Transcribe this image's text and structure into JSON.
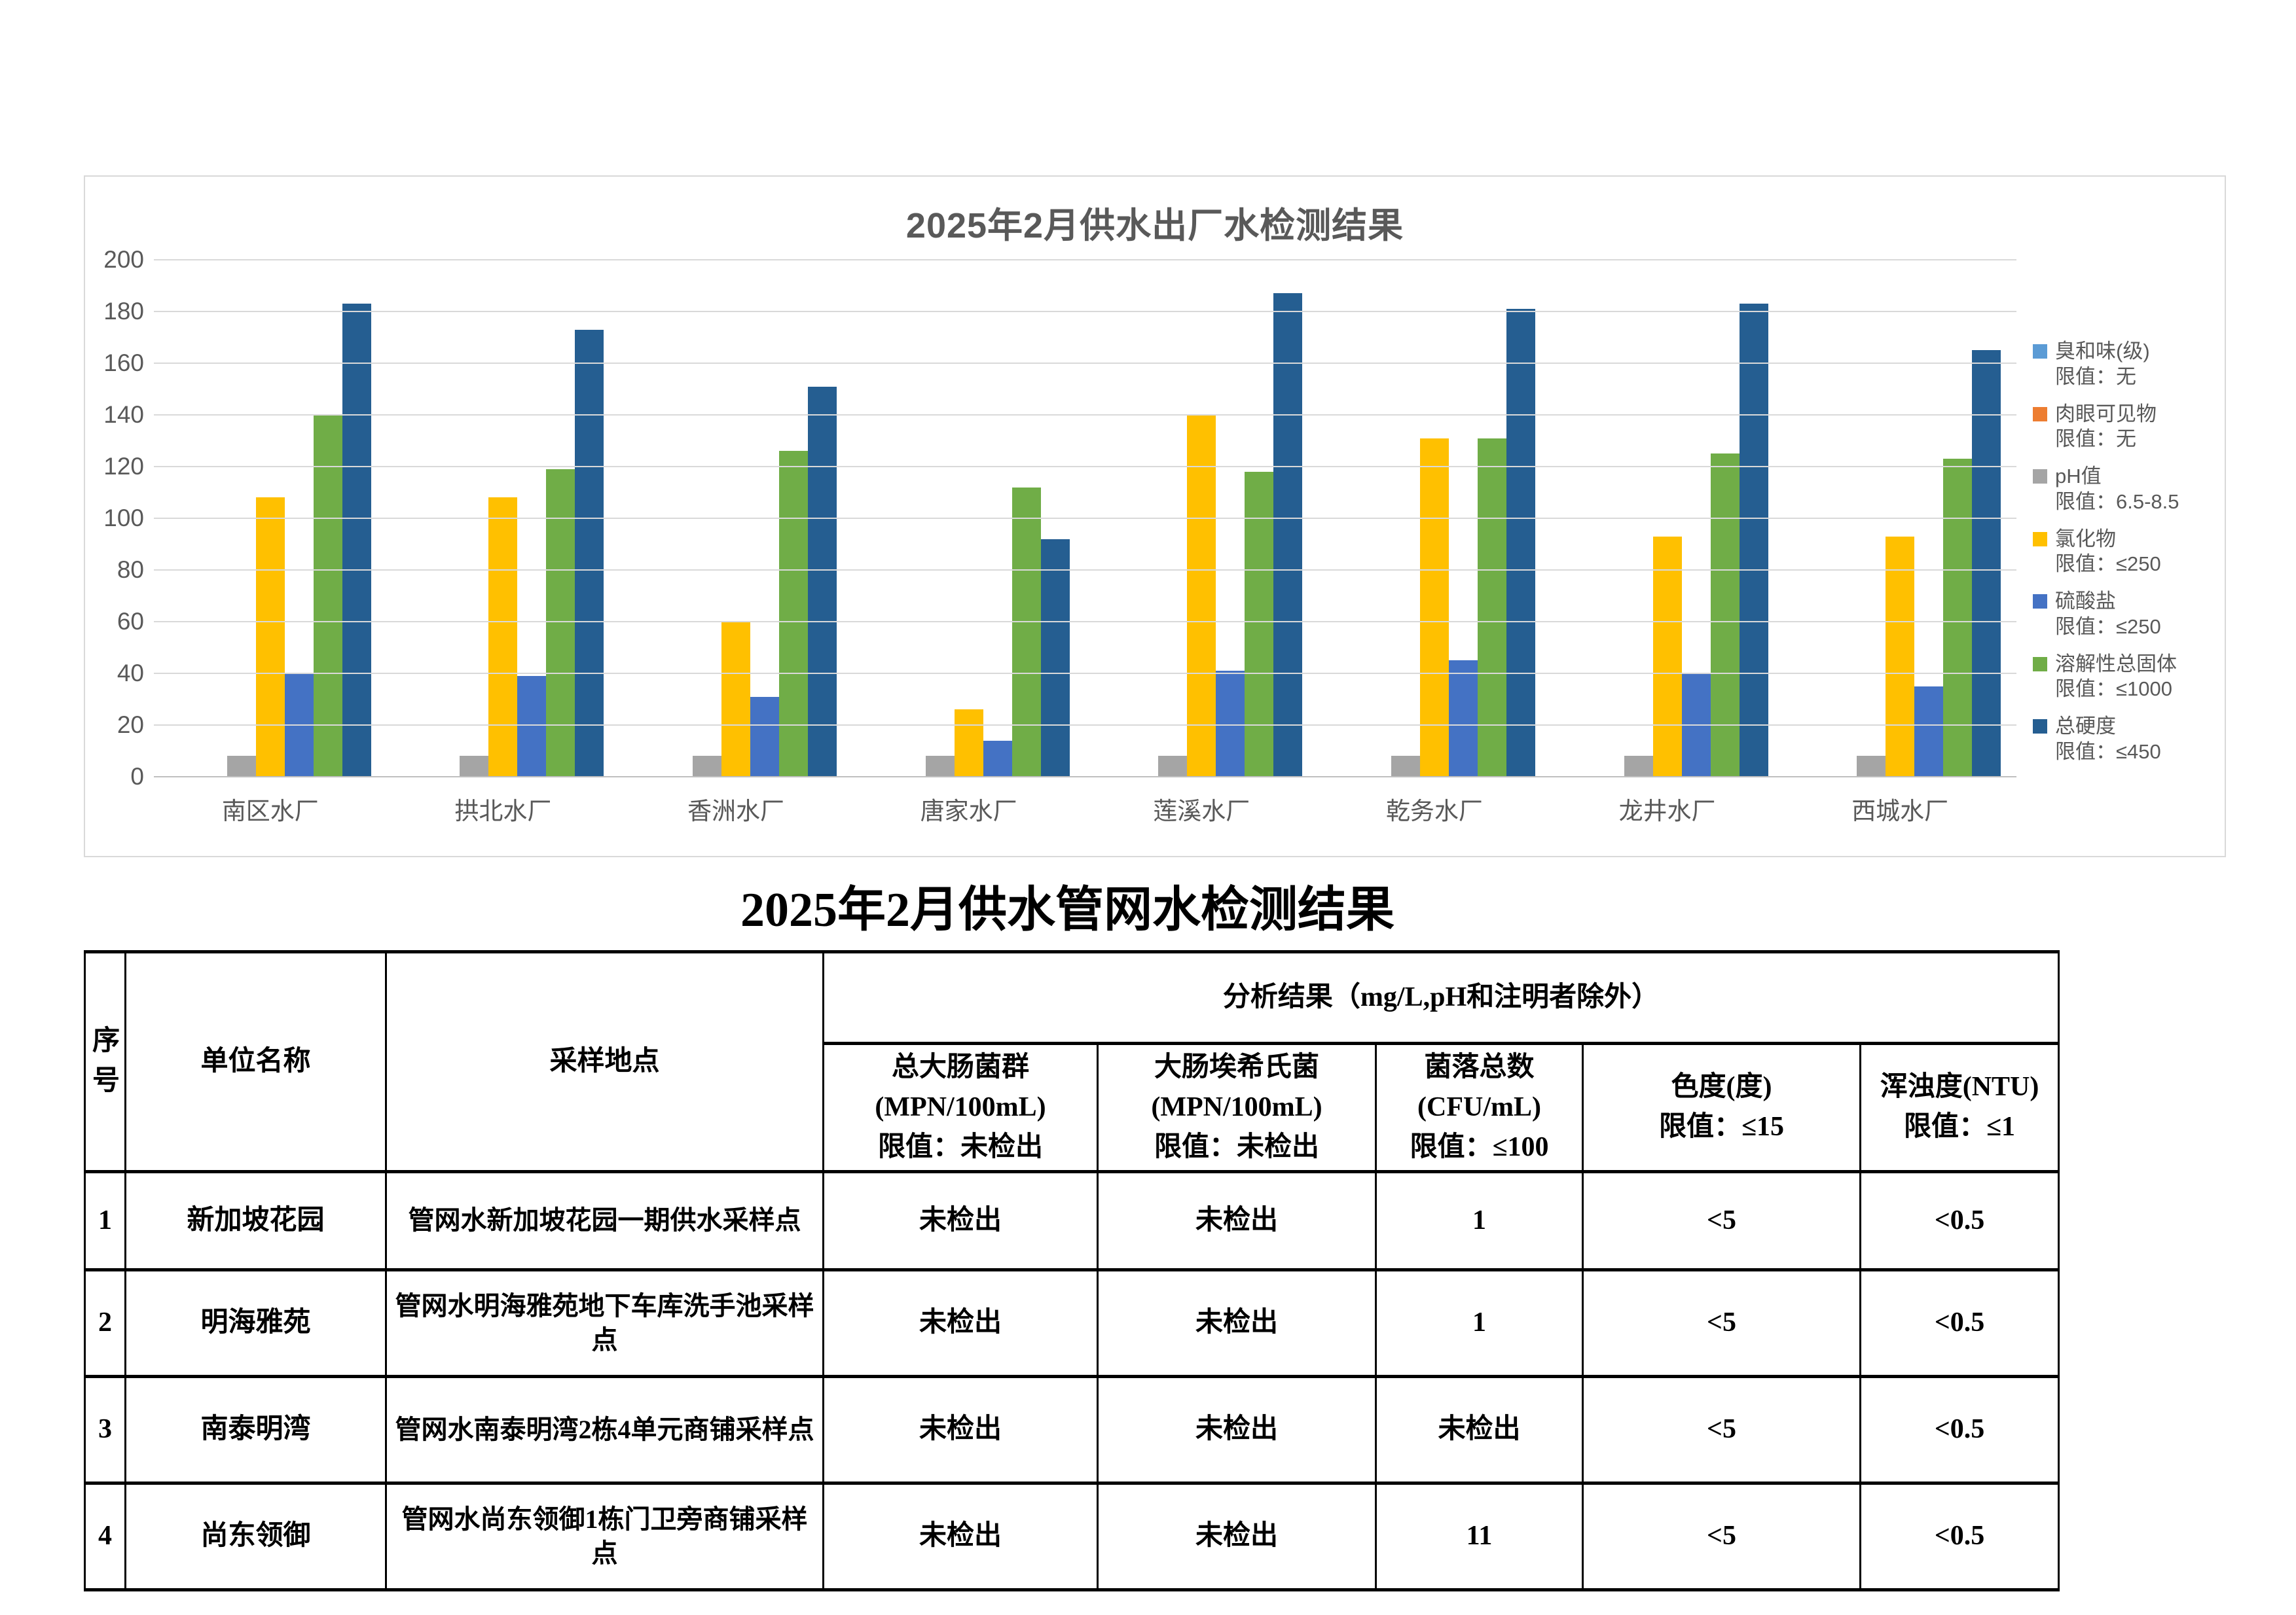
{
  "chart_data": {
    "type": "bar",
    "title": "2025年2月供水出厂水检测结果",
    "categories": [
      "南区水厂",
      "拱北水厂",
      "香洲水厂",
      "唐家水厂",
      "莲溪水厂",
      "乾务水厂",
      "龙井水厂",
      "西城水厂"
    ],
    "series": [
      {
        "name": "臭和味(级)",
        "limit": "限值：无",
        "color": "#5B9BD5",
        "values": [
          0,
          0,
          0,
          0,
          0,
          0,
          0,
          0
        ]
      },
      {
        "name": "肉眼可见物",
        "limit": "限值：无",
        "color": "#ED7D31",
        "values": [
          0,
          0,
          0,
          0,
          0,
          0,
          0,
          0
        ]
      },
      {
        "name": "pH值",
        "limit": "限值：6.5-8.5",
        "color": "#A5A5A5",
        "values": [
          8,
          8,
          8,
          8,
          8,
          8,
          8,
          8
        ]
      },
      {
        "name": "氯化物",
        "limit": "限值：≤250",
        "color": "#FFC000",
        "values": [
          108,
          108,
          60,
          26,
          140,
          131,
          93,
          93
        ]
      },
      {
        "name": "硫酸盐",
        "limit": "限值：≤250",
        "color": "#4472C4",
        "values": [
          40,
          39,
          31,
          14,
          41,
          45,
          40,
          35
        ]
      },
      {
        "name": "溶解性总固体",
        "limit": "限值：≤1000",
        "color": "#70AD47",
        "values": [
          140,
          119,
          126,
          112,
          118,
          131,
          125,
          123
        ]
      },
      {
        "name": "总硬度",
        "limit": "限值：≤450",
        "color": "#255E91",
        "values": [
          183,
          173,
          151,
          92,
          187,
          181,
          183,
          165
        ]
      }
    ],
    "ylim": [
      0,
      200
    ],
    "y_ticks": [
      0,
      20,
      40,
      60,
      80,
      100,
      120,
      140,
      160,
      180,
      200
    ],
    "xlabel": "",
    "ylabel": "",
    "grid": true,
    "legend_position": "right"
  },
  "table": {
    "title": "2025年2月供水管网水检测结果",
    "header": {
      "seq": "序\n号",
      "unit": "单位名称",
      "location": "采样地点",
      "analysis_group": "分析结果（mg/L,pH和注明者除外）",
      "sub": [
        "总大肠菌群\n(MPN/100mL)\n限值：未检出",
        "大肠埃希氏菌\n(MPN/100mL)\n限值：未检出",
        "菌落总数\n(CFU/mL)\n限值：≤100",
        "色度(度)\n限值：≤15",
        "浑浊度(NTU)\n限值：≤1"
      ]
    },
    "rows": [
      {
        "seq": "1",
        "unit": "新加坡花园",
        "location": "管网水新加坡花园一期供水采样点",
        "values": [
          "未检出",
          "未检出",
          "1",
          "<5",
          "<0.5"
        ]
      },
      {
        "seq": "2",
        "unit": "明海雅苑",
        "location": "管网水明海雅苑地下车库洗手池采样点",
        "values": [
          "未检出",
          "未检出",
          "1",
          "<5",
          "<0.5"
        ]
      },
      {
        "seq": "3",
        "unit": "南泰明湾",
        "location": "管网水南泰明湾2栋4单元商铺采样点",
        "values": [
          "未检出",
          "未检出",
          "未检出",
          "<5",
          "<0.5"
        ]
      },
      {
        "seq": "4",
        "unit": "尚东领御",
        "location": "管网水尚东领御1栋门卫旁商铺采样点",
        "values": [
          "未检出",
          "未检出",
          "11",
          "<5",
          "<0.5"
        ]
      }
    ]
  }
}
